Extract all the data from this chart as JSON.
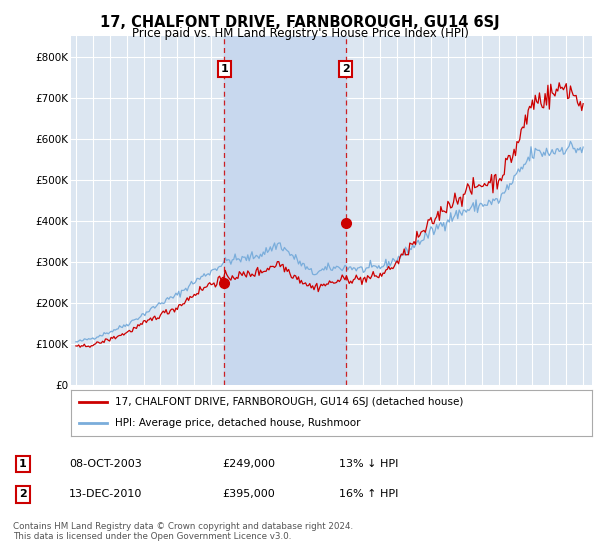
{
  "title": "17, CHALFONT DRIVE, FARNBOROUGH, GU14 6SJ",
  "subtitle": "Price paid vs. HM Land Registry's House Price Index (HPI)",
  "background_color": "#ffffff",
  "plot_bg_color": "#dce6f1",
  "shade_color": "#c8d8ee",
  "grid_color": "#ffffff",
  "line1_color": "#cc0000",
  "line2_color": "#7aaddb",
  "purchase1_x": 2003.78,
  "purchase1_y": 249000,
  "purchase2_x": 2010.95,
  "purchase2_y": 395000,
  "legend_line1": "17, CHALFONT DRIVE, FARNBOROUGH, GU14 6SJ (detached house)",
  "legend_line2": "HPI: Average price, detached house, Rushmoor",
  "table_row1": [
    "1",
    "08-OCT-2003",
    "£249,000",
    "13% ↓ HPI"
  ],
  "table_row2": [
    "2",
    "13-DEC-2010",
    "£395,000",
    "16% ↑ HPI"
  ],
  "footer": "Contains HM Land Registry data © Crown copyright and database right 2024.\nThis data is licensed under the Open Government Licence v3.0.",
  "ylim": [
    0,
    850000
  ],
  "yticks": [
    0,
    100000,
    200000,
    300000,
    400000,
    500000,
    600000,
    700000,
    800000
  ],
  "ytick_labels": [
    "£0",
    "£100K",
    "£200K",
    "£300K",
    "£400K",
    "£500K",
    "£600K",
    "£700K",
    "£800K"
  ],
  "xmin": 1994.7,
  "xmax": 2025.5,
  "xticks": [
    1995,
    1996,
    1997,
    1998,
    1999,
    2000,
    2001,
    2002,
    2003,
    2004,
    2005,
    2006,
    2007,
    2008,
    2009,
    2010,
    2011,
    2012,
    2013,
    2014,
    2015,
    2016,
    2017,
    2018,
    2019,
    2020,
    2021,
    2022,
    2023,
    2024,
    2025
  ]
}
